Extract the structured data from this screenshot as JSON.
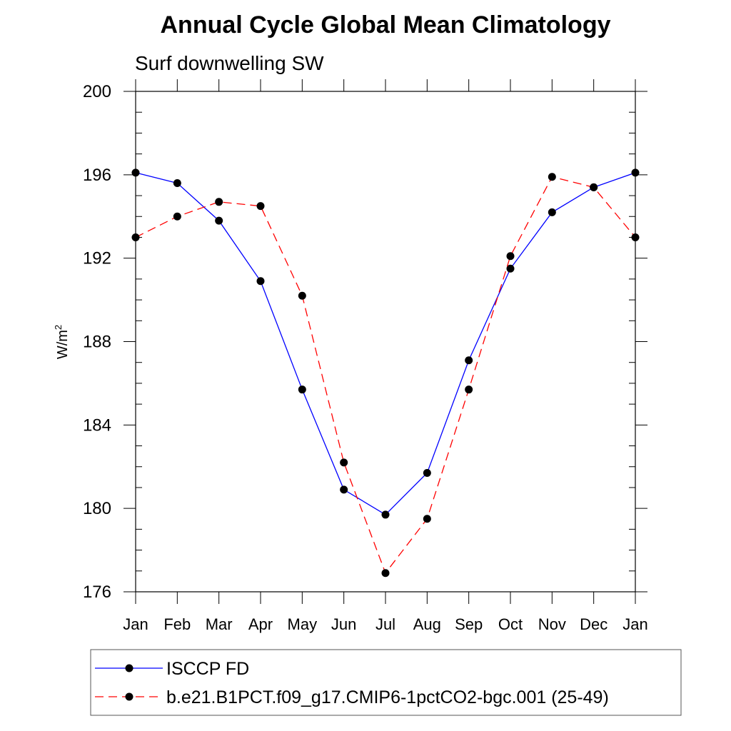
{
  "chart_data": {
    "type": "line",
    "title": "Annual Cycle Global Mean Climatology",
    "subtitle": "Surf downwelling SW",
    "ylabel": "W/m",
    "ylabel_superscript": "2",
    "xlabel": "",
    "categories": [
      "Jan",
      "Feb",
      "Mar",
      "Apr",
      "May",
      "Jun",
      "Jul",
      "Aug",
      "Sep",
      "Oct",
      "Nov",
      "Dec",
      "Jan"
    ],
    "ylim": [
      176,
      200
    ],
    "yticks": [
      "176",
      "180",
      "184",
      "188",
      "192",
      "196",
      "200"
    ],
    "grid": false,
    "legend_position": "bottom",
    "series": [
      {
        "name": "ISCCP FD",
        "values": [
          196.1,
          195.6,
          193.8,
          190.9,
          185.7,
          180.9,
          179.7,
          181.7,
          187.1,
          191.5,
          194.2,
          195.4,
          196.1
        ],
        "color": "#0000ff",
        "line_style": "solid",
        "marker": "circle"
      },
      {
        "name": "b.e21.B1PCT.f09_g17.CMIP6-1pctCO2-bgc.001 (25-49)",
        "values": [
          193.0,
          194.0,
          194.7,
          194.5,
          190.2,
          182.2,
          176.9,
          179.5,
          185.7,
          192.1,
          195.9,
          195.4,
          193.0
        ],
        "color": "#ff0000",
        "line_style": "dashed",
        "marker": "circle"
      }
    ]
  }
}
